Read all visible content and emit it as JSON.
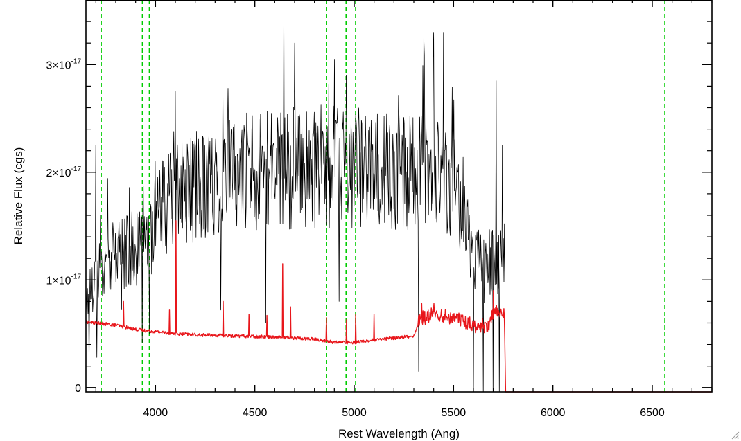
{
  "chart_data": {
    "type": "line",
    "title": "",
    "xlabel": "Rest Wavelength (Ang)",
    "ylabel": "Relative Flux (cgs)",
    "xlim": [
      3650,
      6800
    ],
    "ylim": [
      -4e-19,
      3.6e-17
    ],
    "x_ticks": [
      {
        "value": 4000,
        "label": "4000"
      },
      {
        "value": 4500,
        "label": "4500"
      },
      {
        "value": 5000,
        "label": "5000"
      },
      {
        "value": 5500,
        "label": "5500"
      },
      {
        "value": 6000,
        "label": "6000"
      },
      {
        "value": 6500,
        "label": "6500"
      }
    ],
    "y_ticks": [
      {
        "value": 0,
        "label": "0",
        "mant": "",
        "exp": ""
      },
      {
        "value": 1e-17,
        "label": "1×10-17",
        "mant": "1×10",
        "exp": "-17"
      },
      {
        "value": 2e-17,
        "label": "2×10-17",
        "mant": "2×10",
        "exp": "-17"
      },
      {
        "value": 3e-17,
        "label": "3×10-17",
        "mant": "3×10",
        "exp": "-17"
      }
    ],
    "vertical_lines": [
      {
        "x": 3727,
        "color": "#00cc00",
        "style": "dashed"
      },
      {
        "x": 3934,
        "color": "#00cc00",
        "style": "dashed"
      },
      {
        "x": 3969,
        "color": "#00cc00",
        "style": "dashed"
      },
      {
        "x": 4861,
        "color": "#00cc00",
        "style": "dashed"
      },
      {
        "x": 4959,
        "color": "#00cc00",
        "style": "dashed"
      },
      {
        "x": 5007,
        "color": "#00cc00",
        "style": "dashed"
      },
      {
        "x": 6563,
        "color": "#00cc00",
        "style": "dashed"
      }
    ],
    "series": [
      {
        "color": "#000000",
        "profile": [
          [
            3650,
            0.8
          ],
          [
            3680,
            0.95
          ],
          [
            3700,
            1.05
          ],
          [
            3750,
            1.15
          ],
          [
            3800,
            1.22
          ],
          [
            3850,
            1.28
          ],
          [
            3900,
            1.28
          ],
          [
            3950,
            1.3
          ],
          [
            4000,
            1.55
          ],
          [
            4050,
            1.7
          ],
          [
            4100,
            1.78
          ],
          [
            4200,
            1.86
          ],
          [
            4300,
            1.92
          ],
          [
            4400,
            1.98
          ],
          [
            4500,
            2.0
          ],
          [
            4600,
            2.02
          ],
          [
            4700,
            2.04
          ],
          [
            4800,
            2.03
          ],
          [
            4900,
            2.05
          ],
          [
            5000,
            2.05
          ],
          [
            5100,
            2.02
          ],
          [
            5200,
            2.0
          ],
          [
            5300,
            1.98
          ],
          [
            5400,
            2.0
          ],
          [
            5500,
            1.9
          ],
          [
            5550,
            1.65
          ],
          [
            5600,
            1.2
          ],
          [
            5650,
            1.1
          ],
          [
            5700,
            1.2
          ],
          [
            5760,
            1.2
          ]
        ],
        "spikes": [
          [
            3700,
            2.25
          ],
          [
            3724,
            1.6
          ],
          [
            3860,
            1.45
          ],
          [
            4000,
            2.1
          ],
          [
            4100,
            2.75
          ],
          [
            4340,
            2.8
          ],
          [
            4460,
            2.55
          ],
          [
            4645,
            3.55
          ],
          [
            4700,
            3.2
          ],
          [
            4900,
            3.05
          ],
          [
            4960,
            2.9
          ],
          [
            5350,
            3.25
          ],
          [
            5400,
            3.3
          ],
          [
            5450,
            3.3
          ],
          [
            5715,
            2.85
          ],
          [
            5745,
            2.25
          ]
        ],
        "dips": [
          [
            3665,
            0.25
          ],
          [
            3705,
            0.28
          ],
          [
            3935,
            0.42
          ],
          [
            3970,
            0.5
          ],
          [
            4100,
            -0.04
          ],
          [
            4330,
            0.72
          ],
          [
            4555,
            0.6
          ],
          [
            4925,
            0.8
          ],
          [
            5325,
            0.15
          ],
          [
            5600,
            -0.04
          ],
          [
            5650,
            -0.04
          ],
          [
            5700,
            -0.04
          ],
          [
            5730,
            -0.04
          ]
        ],
        "x_end": 5760
      },
      {
        "color": "#e8161b",
        "profile": [
          [
            3650,
            0.61
          ],
          [
            3700,
            0.6
          ],
          [
            3800,
            0.58
          ],
          [
            3900,
            0.54
          ],
          [
            4000,
            0.52
          ],
          [
            4100,
            0.5
          ],
          [
            4200,
            0.49
          ],
          [
            4400,
            0.48
          ],
          [
            4600,
            0.47
          ],
          [
            4800,
            0.45
          ],
          [
            4900,
            0.42
          ],
          [
            5000,
            0.42
          ],
          [
            5100,
            0.44
          ],
          [
            5300,
            0.48
          ],
          [
            5330,
            0.62
          ],
          [
            5400,
            0.66
          ],
          [
            5500,
            0.63
          ],
          [
            5600,
            0.56
          ],
          [
            5680,
            0.55
          ],
          [
            5700,
            0.68
          ],
          [
            5755,
            0.66
          ],
          [
            5762,
            -0.04
          ],
          [
            6800,
            -0.04
          ]
        ],
        "spikes": [
          [
            3840,
            0.8
          ],
          [
            4070,
            0.72
          ],
          [
            4102,
            1.55
          ],
          [
            4340,
            0.8
          ],
          [
            4470,
            0.68
          ],
          [
            4560,
            0.67
          ],
          [
            4640,
            1.15
          ],
          [
            4680,
            0.75
          ],
          [
            4860,
            0.65
          ],
          [
            4960,
            0.63
          ],
          [
            5007,
            0.68
          ],
          [
            5100,
            0.68
          ],
          [
            5340,
            0.78
          ],
          [
            5400,
            0.78
          ],
          [
            5460,
            0.72
          ],
          [
            5520,
            0.68
          ],
          [
            5700,
            0.9
          ]
        ],
        "dips": [],
        "x_end": 6800
      }
    ]
  },
  "window": {
    "resize_grip_icon": "resize-grip-icon"
  }
}
